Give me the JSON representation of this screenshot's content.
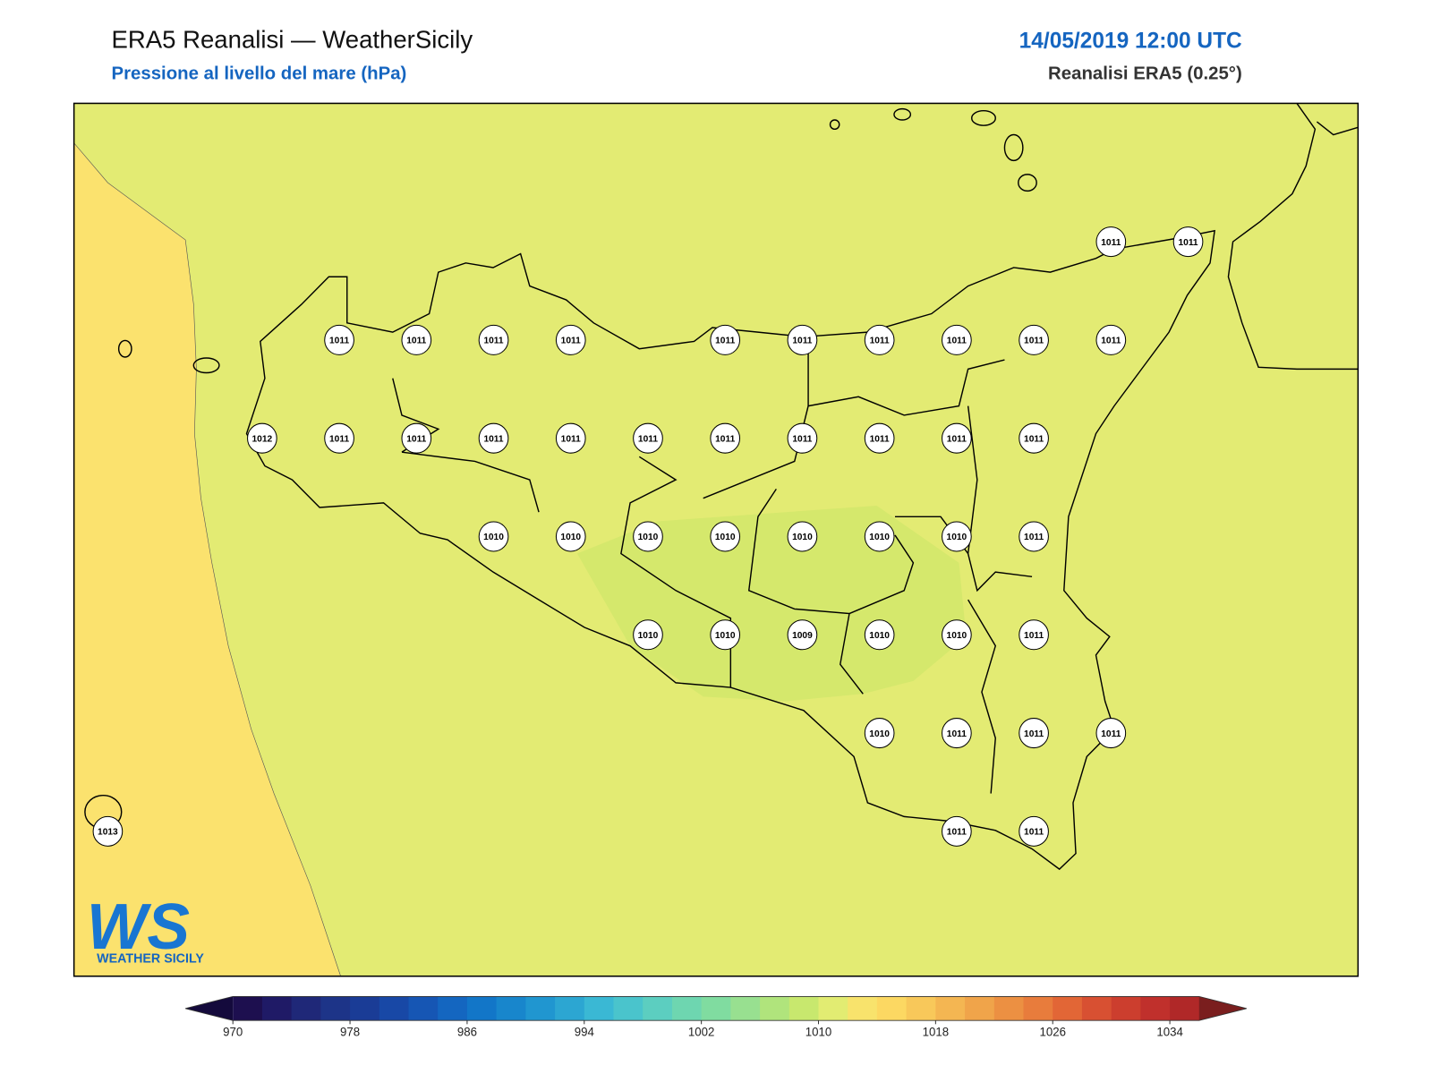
{
  "header": {
    "title": "ERA5 Reanalisi — WeatherSicily",
    "subtitle": "Pressione al livello del mare (hPa)",
    "date": "14/05/2019 12:00 UTC",
    "source": "Reanalisi ERA5 (0.25°)"
  },
  "logo": {
    "mark": "WS",
    "text": "WEATHER SICILY"
  },
  "grid": {
    "rows": [
      [
        null,
        null,
        null,
        null,
        null,
        null,
        null,
        null,
        null,
        null,
        null,
        null,
        null,
        1011,
        1011
      ],
      [
        null,
        null,
        null,
        1011,
        1011,
        1011,
        1011,
        null,
        1011,
        1011,
        1011,
        1011,
        1011,
        1011,
        null
      ],
      [
        null,
        null,
        1012,
        1011,
        1011,
        1011,
        1011,
        1011,
        1011,
        1011,
        1011,
        1011,
        1011,
        null,
        null
      ],
      [
        null,
        null,
        null,
        null,
        null,
        1010,
        1010,
        1010,
        1010,
        1010,
        1010,
        1010,
        1011,
        null,
        null
      ],
      [
        null,
        null,
        null,
        null,
        null,
        null,
        null,
        1010,
        1010,
        1009,
        1010,
        1010,
        1011,
        null,
        null
      ],
      [
        null,
        null,
        null,
        null,
        null,
        null,
        null,
        null,
        null,
        null,
        1010,
        1011,
        1011,
        1011,
        null
      ],
      [
        1013,
        null,
        null,
        null,
        null,
        null,
        null,
        null,
        null,
        null,
        null,
        1011,
        1011,
        null,
        null
      ]
    ]
  },
  "colorbar": {
    "range": [
      970,
      1036
    ],
    "ticks": [
      970,
      978,
      986,
      994,
      1002,
      1010,
      1018,
      1026,
      1034
    ],
    "colors": [
      "#1d0f4f",
      "#1f1a66",
      "#1f2878",
      "#1d3488",
      "#1a3c96",
      "#1848a6",
      "#1656b4",
      "#1466c0",
      "#1276c8",
      "#1886cc",
      "#2096d0",
      "#2ca6d2",
      "#3ab8d4",
      "#4ac4cc",
      "#5ccec0",
      "#6ed6b0",
      "#80dca0",
      "#98e090",
      "#b0e47c",
      "#c8e86e",
      "#e2ec72",
      "#f8e36c",
      "#fcd862",
      "#f8c85a",
      "#f4b652",
      "#f0a44a",
      "#ec9042",
      "#e87c3c",
      "#e26636",
      "#d85032",
      "#cc3e2e",
      "#c0302c",
      "#b02828"
    ],
    "extend_colors": [
      "#140a3c",
      "#7a1e1e"
    ]
  }
}
